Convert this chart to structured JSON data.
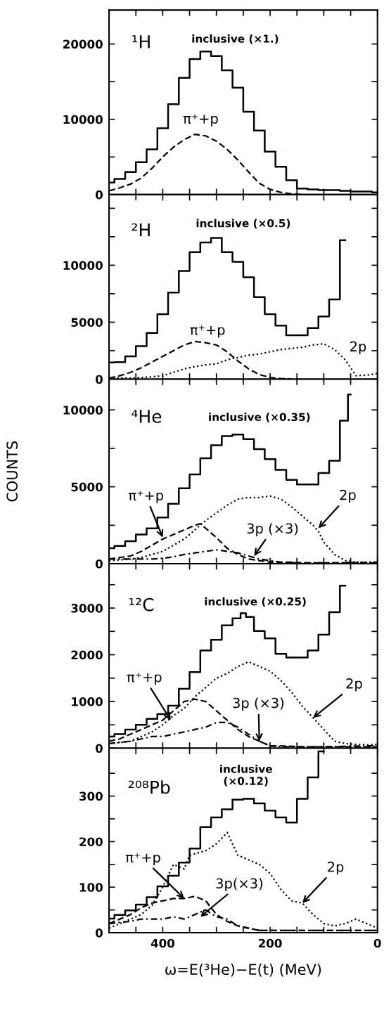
{
  "chart_data": [
    {
      "type": "step",
      "xlim": [
        500,
        0
      ],
      "xticks": [
        {
          "value": 450,
          "label": null
        },
        400,
        {
          "value": 350,
          "label": null
        },
        {
          "value": 300,
          "label": null
        },
        {
          "value": 250,
          "label": null
        },
        200,
        {
          "value": 150,
          "label": null
        },
        {
          "value": 100,
          "label": null
        },
        {
          "value": 50,
          "label": null
        },
        0
      ],
      "ylim": [
        0,
        24500
      ],
      "yticks": [
        0,
        {
          "value": 5000,
          "label": null
        },
        10000,
        {
          "value": 15000,
          "label": null
        },
        20000
      ],
      "tick_labels": "y",
      "annotations": [
        "¹H",
        "inclusive (×1.)",
        {
          "text": "π⁺+p",
          "x": 340,
          "y": 8000
        }
      ],
      "series": [
        {
          "color": "#000000",
          "line_style": "solid",
          "x": [
            500,
            480,
            460,
            440,
            420,
            400,
            380,
            360,
            340,
            320,
            300,
            280,
            260,
            240,
            220,
            200,
            180,
            160,
            140,
            120,
            100,
            80,
            60,
            40,
            20,
            0
          ],
          "values": [
            1600,
            2100,
            3000,
            4300,
            6000,
            8800,
            12000,
            15500,
            18000,
            19000,
            18400,
            16500,
            14200,
            11000,
            8500,
            5700,
            3700,
            1900,
            800,
            700,
            600,
            600,
            500,
            400,
            400,
            300
          ]
        },
        {
          "type": "line",
          "color": "#000000",
          "line_style": "dashed",
          "x": [
            500,
            480,
            460,
            440,
            420,
            400,
            380,
            360,
            340,
            320,
            300,
            280,
            260,
            240,
            220,
            200,
            180,
            160,
            140
          ],
          "values": [
            500,
            900,
            1400,
            2200,
            3500,
            5000,
            6300,
            7300,
            8000,
            7800,
            7100,
            6000,
            4600,
            3000,
            1500,
            700,
            300,
            100,
            0
          ]
        }
      ]
    },
    {
      "type": "step",
      "xlim": [
        500,
        0
      ],
      "xticks": [
        {
          "value": 450,
          "label": null
        },
        400,
        {
          "value": 350,
          "label": null
        },
        {
          "value": 300,
          "label": null
        },
        {
          "value": 250,
          "label": null
        },
        200,
        {
          "value": 150,
          "label": null
        },
        {
          "value": 100,
          "label": null
        },
        {
          "value": 50,
          "label": null
        },
        0
      ],
      "ylim": [
        0,
        16200
      ],
      "yticks": [
        0,
        {
          "value": 2500,
          "label": null
        },
        5000,
        {
          "value": 7500,
          "label": null
        },
        10000,
        {
          "value": 12500,
          "label": null
        },
        {
          "value": 15000,
          "label": null
        }
      ],
      "tick_labels": "y",
      "annotations": [
        "²H",
        "inclusive (×0.5)",
        {
          "text": "π⁺+p",
          "x": 320,
          "y": 3200
        },
        {
          "text": "2p",
          "x": 80,
          "y": 2600
        }
      ],
      "series": [
        {
          "color": "#000000",
          "line_style": "solid",
          "x": [
            500,
            480,
            460,
            440,
            420,
            400,
            380,
            360,
            340,
            320,
            300,
            280,
            260,
            240,
            220,
            200,
            180,
            160,
            140,
            120,
            100,
            80,
            60
          ],
          "values": [
            1460,
            1500,
            2000,
            2900,
            4060,
            5700,
            7600,
            9500,
            11150,
            12000,
            12400,
            11150,
            10300,
            8950,
            7200,
            5700,
            4700,
            3850,
            3850,
            4480,
            5500,
            7000,
            12200
          ]
        },
        {
          "type": "line",
          "color": "#000000",
          "line_style": "dashed",
          "x": [
            500,
            480,
            460,
            440,
            420,
            400,
            380,
            360,
            340,
            320,
            300,
            280,
            260,
            240,
            220,
            200,
            180,
            160
          ],
          "values": [
            100,
            300,
            600,
            1000,
            1500,
            2000,
            2500,
            3000,
            3300,
            3200,
            3000,
            2400,
            1600,
            900,
            400,
            150,
            50,
            0
          ]
        },
        {
          "type": "line",
          "color": "#000000",
          "line_style": "dotted",
          "x": [
            500,
            480,
            460,
            440,
            420,
            400,
            380,
            360,
            340,
            320,
            300,
            280,
            260,
            240,
            220,
            200,
            180,
            160,
            140,
            120,
            100,
            80,
            60,
            40,
            20,
            0
          ],
          "values": [
            100,
            100,
            100,
            150,
            200,
            300,
            600,
            900,
            1100,
            1250,
            1350,
            1700,
            1900,
            2100,
            2200,
            2400,
            2600,
            2700,
            2800,
            3000,
            3100,
            2600,
            1700,
            300,
            350,
            500
          ]
        }
      ]
    },
    {
      "type": "step",
      "xlim": [
        500,
        0
      ],
      "xticks": [
        {
          "value": 450,
          "label": null
        },
        400,
        {
          "value": 350,
          "label": null
        },
        {
          "value": 300,
          "label": null
        },
        {
          "value": 250,
          "label": null
        },
        200,
        {
          "value": 150,
          "label": null
        },
        {
          "value": 100,
          "label": null
        },
        {
          "value": 50,
          "label": null
        },
        0
      ],
      "ylim": [
        0,
        12000
      ],
      "yticks": [
        0,
        {
          "value": 2500,
          "label": null
        },
        5000,
        {
          "value": 7500,
          "label": null
        },
        10000
      ],
      "tick_labels": "y",
      "ylabel": "COUNTS",
      "annotations": [
        "⁴He",
        "inclusive (×0.35)",
        {
          "text": "π⁺+p",
          "x": 400,
          "y": 1700
        },
        {
          "text": "3p (×3)",
          "x": 230,
          "y": 500
        },
        {
          "text": "2p",
          "x": 110,
          "y": 2300
        }
      ],
      "series": [
        {
          "color": "#000000",
          "line_style": "solid",
          "x": [
            500,
            480,
            460,
            440,
            420,
            400,
            380,
            360,
            340,
            320,
            300,
            280,
            260,
            240,
            220,
            200,
            180,
            160,
            140,
            120,
            100,
            80,
            60,
            50
          ],
          "values": [
            1000,
            1150,
            1460,
            1900,
            2300,
            3000,
            3900,
            4900,
            5800,
            6850,
            7700,
            8300,
            8400,
            8100,
            7450,
            6800,
            6100,
            5450,
            5150,
            5150,
            5900,
            6700,
            9300,
            11000
          ]
        },
        {
          "type": "line",
          "color": "#000000",
          "line_style": "dashed",
          "x": [
            500,
            480,
            460,
            440,
            420,
            400,
            380,
            360,
            340,
            330,
            320,
            300,
            280,
            260,
            240,
            220,
            200,
            180,
            160,
            140,
            120,
            100,
            80,
            60,
            40,
            20,
            0
          ],
          "values": [
            300,
            400,
            500,
            800,
            1200,
            1600,
            1900,
            2200,
            2500,
            2600,
            2300,
            1700,
            1000,
            600,
            300,
            200,
            100,
            100,
            100,
            50,
            50,
            50,
            50,
            50,
            50,
            50,
            50
          ]
        },
        {
          "type": "line",
          "color": "#000000",
          "line_style": "dotted",
          "x": [
            500,
            480,
            460,
            440,
            420,
            400,
            380,
            360,
            340,
            320,
            300,
            280,
            260,
            240,
            220,
            200,
            180,
            160,
            140,
            120,
            110,
            100,
            80,
            60,
            40,
            20,
            0
          ],
          "values": [
            200,
            250,
            300,
            400,
            600,
            800,
            1200,
            1600,
            2200,
            2800,
            3300,
            3800,
            4200,
            4300,
            4300,
            4400,
            4200,
            3700,
            3100,
            2500,
            2100,
            1400,
            600,
            200,
            100,
            100,
            100
          ]
        },
        {
          "type": "line",
          "color": "#000000",
          "line_style": "dashdot",
          "x": [
            500,
            460,
            420,
            400,
            380,
            360,
            340,
            320,
            300,
            280,
            260,
            240,
            220,
            200,
            180,
            160,
            120,
            80,
            40,
            0
          ],
          "values": [
            300,
            300,
            300,
            350,
            450,
            600,
            700,
            800,
            900,
            800,
            700,
            500,
            300,
            200,
            100,
            50,
            50,
            50,
            80,
            100
          ]
        }
      ]
    },
    {
      "type": "step",
      "xlim": [
        500,
        0
      ],
      "xticks": [
        {
          "value": 450,
          "label": null
        },
        400,
        {
          "value": 350,
          "label": null
        },
        {
          "value": 300,
          "label": null
        },
        {
          "value": 250,
          "label": null
        },
        200,
        {
          "value": 150,
          "label": null
        },
        {
          "value": 100,
          "label": null
        },
        {
          "value": 50,
          "label": null
        },
        0
      ],
      "ylim": [
        0,
        3950
      ],
      "yticks": [
        0,
        {
          "value": 500,
          "label": null
        },
        1000,
        {
          "value": 1500,
          "label": null
        },
        2000,
        {
          "value": 2500,
          "label": null
        },
        3000,
        {
          "value": 3500,
          "label": null
        }
      ],
      "tick_labels": "y",
      "annotations": [
        "¹²C",
        "inclusive (×0.25)",
        {
          "text": "π⁺+p",
          "x": 385,
          "y": 600
        },
        {
          "text": "3p (×3)",
          "x": 220,
          "y": 150
        },
        {
          "text": "2p",
          "x": 120,
          "y": 650
        }
      ],
      "series": [
        {
          "color": "#000000",
          "line_style": "solid",
          "x": [
            500,
            480,
            460,
            440,
            420,
            400,
            380,
            360,
            340,
            320,
            300,
            280,
            260,
            250,
            240,
            220,
            200,
            180,
            160,
            140,
            120,
            100,
            80,
            60
          ],
          "values": [
            250,
            300,
            400,
            500,
            630,
            730,
            910,
            1270,
            1630,
            2090,
            2320,
            2630,
            2780,
            2890,
            2810,
            2510,
            2350,
            2020,
            1940,
            1940,
            2090,
            2430,
            2910,
            3480
          ]
        },
        {
          "type": "line",
          "color": "#000000",
          "line_style": "dashed",
          "x": [
            500,
            480,
            460,
            440,
            420,
            400,
            380,
            360,
            340,
            320,
            300,
            280,
            260,
            240,
            220,
            200,
            180,
            140,
            100,
            60,
            20,
            0
          ],
          "values": [
            150,
            200,
            300,
            400,
            500,
            600,
            800,
            1000,
            1050,
            1000,
            800,
            600,
            400,
            250,
            150,
            50,
            50,
            30,
            30,
            30,
            30,
            30
          ]
        },
        {
          "type": "line",
          "color": "#000000",
          "line_style": "dotted",
          "x": [
            500,
            480,
            460,
            440,
            420,
            400,
            380,
            360,
            340,
            320,
            300,
            280,
            260,
            240,
            220,
            200,
            180,
            160,
            140,
            120,
            100,
            80,
            60,
            40,
            20,
            0
          ],
          "values": [
            100,
            120,
            150,
            250,
            350,
            500,
            700,
            850,
            1100,
            1300,
            1500,
            1600,
            1750,
            1850,
            1750,
            1650,
            1450,
            1200,
            900,
            650,
            400,
            150,
            100,
            80,
            70,
            80
          ]
        },
        {
          "type": "line",
          "color": "#000000",
          "line_style": "dashdot",
          "x": [
            500,
            460,
            440,
            420,
            400,
            380,
            360,
            340,
            320,
            300,
            280,
            260,
            240,
            220,
            200,
            180,
            140,
            100,
            60,
            20,
            0
          ],
          "values": [
            100,
            150,
            200,
            250,
            250,
            300,
            350,
            400,
            450,
            550,
            550,
            450,
            300,
            150,
            50,
            30,
            30,
            30,
            40,
            50,
            50
          ]
        }
      ]
    },
    {
      "type": "step",
      "xlim": [
        500,
        0
      ],
      "xticks": [
        {
          "value": 450,
          "label": null
        },
        400,
        {
          "value": 350,
          "label": null
        },
        {
          "value": 300,
          "label": null
        },
        {
          "value": 250,
          "label": null
        },
        200,
        {
          "value": 150,
          "label": null
        },
        {
          "value": 100,
          "label": null
        },
        {
          "value": 50,
          "label": null
        },
        0
      ],
      "ylim": [
        0,
        405
      ],
      "yticks": [
        0,
        {
          "value": 50,
          "label": null
        },
        100,
        {
          "value": 150,
          "label": null
        },
        200,
        {
          "value": 250,
          "label": null
        },
        300,
        {
          "value": 350,
          "label": null
        }
      ],
      "xlabel": "ω=E(³He)−E(t) (MeV)",
      "annotations": [
        "²⁰⁸Pb",
        "inclusive\n(×0.12)",
        {
          "text": "π⁺+p",
          "x": 360,
          "y": 75
        },
        {
          "text": "3p(×3)",
          "x": 330,
          "y": 35
        },
        {
          "text": "2p",
          "x": 140,
          "y": 65
        }
      ],
      "series": [
        {
          "color": "#000000",
          "line_style": "solid",
          "x": [
            500,
            480,
            460,
            440,
            420,
            400,
            380,
            360,
            340,
            320,
            300,
            280,
            260,
            240,
            220,
            200,
            180,
            160,
            140,
            120,
            100
          ],
          "values": [
            31,
            39,
            49,
            62,
            78,
            102,
            125,
            154,
            185,
            232,
            253,
            271,
            292,
            294,
            284,
            268,
            253,
            242,
            294,
            341,
            398
          ]
        },
        {
          "type": "line",
          "color": "#000000",
          "line_style": "dashed",
          "x": [
            500,
            480,
            460,
            440,
            420,
            400,
            380,
            360,
            340,
            320,
            300,
            280,
            260,
            240,
            220,
            200,
            160,
            120,
            80,
            40,
            0
          ],
          "values": [
            20,
            30,
            40,
            55,
            65,
            70,
            75,
            75,
            80,
            70,
            40,
            25,
            15,
            10,
            5,
            5,
            5,
            5,
            5,
            5,
            5
          ]
        },
        {
          "type": "line",
          "color": "#000000",
          "line_style": "dotted",
          "x": [
            500,
            480,
            460,
            440,
            420,
            400,
            380,
            360,
            350,
            320,
            300,
            280,
            260,
            240,
            220,
            200,
            180,
            160,
            140,
            120,
            100,
            80,
            60,
            40,
            20,
            0
          ],
          "values": [
            10,
            20,
            30,
            40,
            60,
            100,
            150,
            140,
            170,
            180,
            195,
            220,
            170,
            160,
            150,
            130,
            95,
            70,
            65,
            40,
            20,
            15,
            20,
            30,
            20,
            10
          ]
        },
        {
          "type": "line",
          "color": "#000000",
          "line_style": "dashdot",
          "x": [
            500,
            460,
            440,
            420,
            400,
            380,
            360,
            340,
            320,
            300,
            280,
            260,
            240,
            220,
            200,
            160,
            120,
            80,
            40,
            0
          ],
          "values": [
            20,
            25,
            30,
            30,
            30,
            35,
            30,
            40,
            50,
            35,
            30,
            15,
            10,
            5,
            5,
            5,
            5,
            5,
            5,
            5
          ]
        }
      ]
    }
  ]
}
